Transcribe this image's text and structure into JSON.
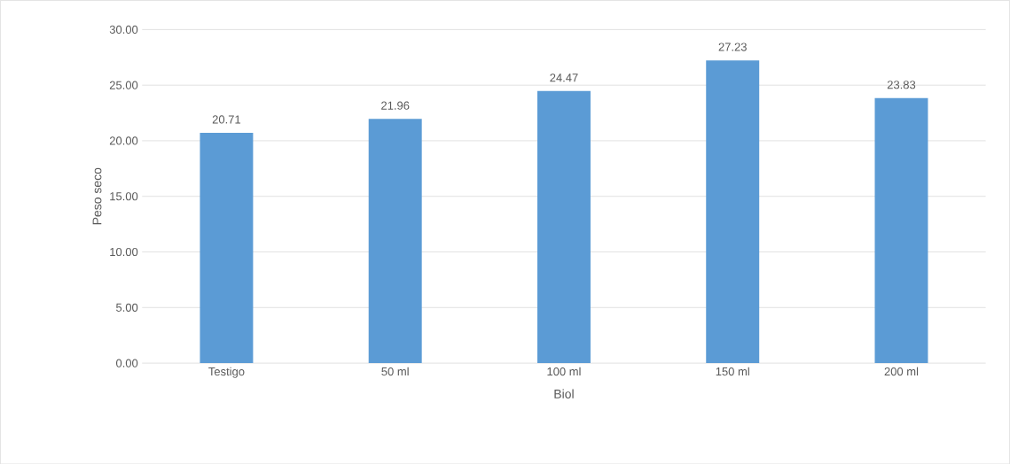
{
  "chart_data": {
    "type": "bar",
    "xlabel": "Biol",
    "ylabel": "Peso seco",
    "categories": [
      "Testigo",
      "50 ml",
      "100 ml",
      "150 ml",
      "200 ml"
    ],
    "values": [
      20.71,
      21.96,
      24.47,
      27.23,
      23.83
    ],
    "color": "#5b9bd5",
    "ylim": [
      0,
      30
    ],
    "yticks": [
      {
        "value": 0,
        "label": "0.00"
      },
      {
        "value": 5,
        "label": "5.00"
      },
      {
        "value": 10,
        "label": "10.00"
      },
      {
        "value": 15,
        "label": "15.00"
      },
      {
        "value": 20,
        "label": "20.00"
      },
      {
        "value": 25,
        "label": "25.00"
      },
      {
        "value": 30,
        "label": "30.00"
      }
    ],
    "grid": "y",
    "data_labels": true
  }
}
